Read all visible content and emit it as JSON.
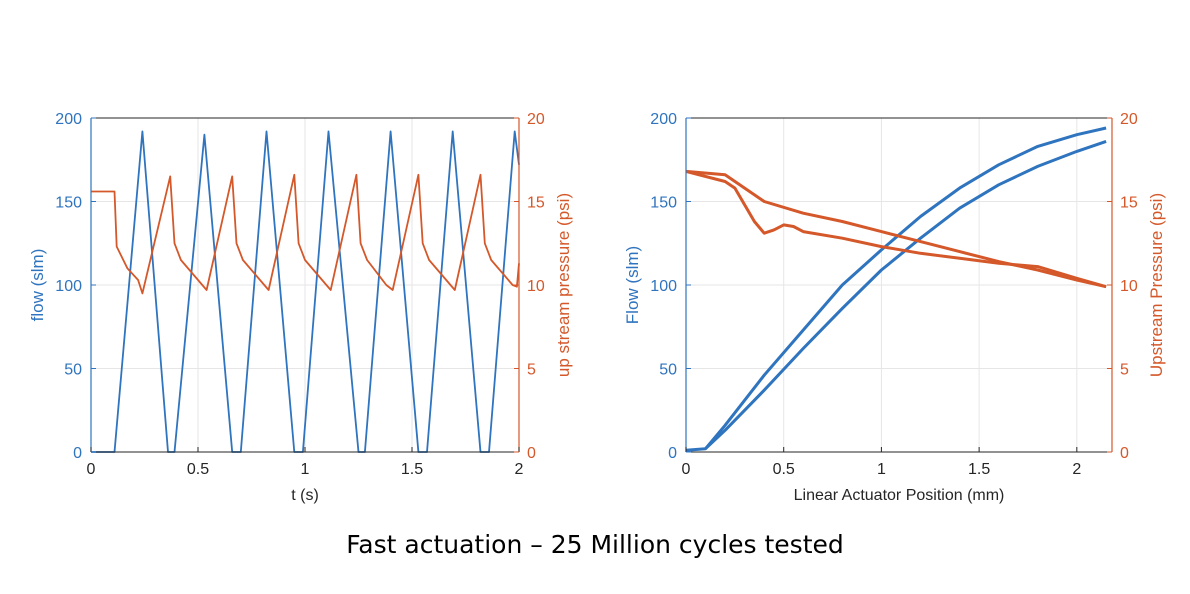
{
  "caption": "Fast actuation – 25 Million cycles tested",
  "colors": {
    "flow": "#2f74be",
    "pressure": "#d4582a",
    "grid": "#e6e6e6",
    "axis": "#262626"
  },
  "chart_data": [
    {
      "type": "line",
      "xlabel": "t (s)",
      "ylabel_left": "flow (slm)",
      "ylabel_right": "up stream pressure (psi)",
      "xlim": [
        0,
        2
      ],
      "ylim_left": [
        0,
        200
      ],
      "ylim_right": [
        0,
        20
      ],
      "xticks": [
        "0",
        "0.5",
        "1",
        "1.5",
        "2"
      ],
      "yticks_left": [
        "0",
        "50",
        "100",
        "150",
        "200"
      ],
      "yticks_right": [
        "0",
        "5",
        "10",
        "15",
        "20"
      ],
      "grid": true,
      "series": [
        {
          "axis": "left",
          "color": "#2f74be",
          "x": [
            0,
            0.11,
            0.24,
            0.36,
            0.375,
            0.39,
            0.53,
            0.66,
            0.685,
            0.7,
            0.82,
            0.95,
            0.97,
            0.99,
            1.11,
            1.25,
            1.265,
            1.28,
            1.4,
            1.53,
            1.55,
            1.57,
            1.69,
            1.82,
            1.84,
            1.86,
            1.98,
            2.0
          ],
          "y": [
            0,
            0,
            192,
            0,
            0,
            0,
            190,
            0,
            0,
            0,
            192,
            0,
            0,
            0,
            192,
            0,
            0,
            0,
            192,
            0,
            0,
            0,
            192,
            0,
            0,
            0,
            192,
            172
          ]
        },
        {
          "axis": "right",
          "color": "#d4582a",
          "x": [
            0,
            0.11,
            0.12,
            0.17,
            0.22,
            0.24,
            0.37,
            0.39,
            0.42,
            0.52,
            0.54,
            0.66,
            0.68,
            0.71,
            0.81,
            0.83,
            0.95,
            0.97,
            1.0,
            1.1,
            1.12,
            1.24,
            1.26,
            1.29,
            1.38,
            1.41,
            1.53,
            1.55,
            1.58,
            1.68,
            1.7,
            1.82,
            1.84,
            1.87,
            1.97,
            1.99,
            2.0
          ],
          "y": [
            15.6,
            15.6,
            12.3,
            11.0,
            10.3,
            9.5,
            16.5,
            12.5,
            11.5,
            10.0,
            9.7,
            16.5,
            12.5,
            11.5,
            10.0,
            9.7,
            16.6,
            12.5,
            11.5,
            10.0,
            9.7,
            16.6,
            12.5,
            11.5,
            10.0,
            9.7,
            16.6,
            12.5,
            11.5,
            10.0,
            9.7,
            16.6,
            12.5,
            11.5,
            10.0,
            9.9,
            11.3
          ]
        }
      ]
    },
    {
      "type": "line",
      "xlabel": "Linear Actuator Position (mm)",
      "ylabel_left": "Flow (slm)",
      "ylabel_right": "Upstream Pressure (psi)",
      "xlim": [
        0,
        2.18
      ],
      "ylim_left": [
        0,
        200
      ],
      "ylim_right": [
        0,
        20
      ],
      "xticks": [
        "0",
        "0.5",
        "1",
        "1.5",
        "2"
      ],
      "yticks_left": [
        "0",
        "50",
        "100",
        "150",
        "200"
      ],
      "yticks_right": [
        "0",
        "5",
        "10",
        "15",
        "20"
      ],
      "grid": true,
      "series": [
        {
          "axis": "left",
          "color": "#2f74be",
          "x": [
            0,
            0.1,
            0.2,
            0.4,
            0.6,
            0.8,
            1.0,
            1.2,
            1.4,
            1.6,
            1.8,
            2.0,
            2.15
          ],
          "y": [
            1,
            2,
            16,
            46,
            73,
            100,
            121,
            141,
            158,
            172,
            183,
            190,
            194
          ]
        },
        {
          "axis": "left",
          "color": "#2f74be",
          "x": [
            0.1,
            0.2,
            0.4,
            0.6,
            0.8,
            1.0,
            1.2,
            1.4,
            1.6,
            1.8,
            2.0,
            2.15
          ],
          "y": [
            2,
            13,
            37,
            62,
            86,
            109,
            128,
            146,
            160,
            171,
            180,
            186
          ]
        },
        {
          "axis": "right",
          "color": "#d4582a",
          "x": [
            0,
            0.2,
            0.25,
            0.3,
            0.35,
            0.4,
            0.45,
            0.5,
            0.55,
            0.6,
            0.8,
            1.0,
            1.2,
            1.4,
            1.6,
            1.8,
            2.0,
            2.15
          ],
          "y": [
            16.8,
            16.2,
            15.8,
            14.8,
            13.8,
            13.1,
            13.3,
            13.6,
            13.5,
            13.2,
            12.8,
            12.3,
            11.9,
            11.6,
            11.3,
            11.1,
            10.4,
            9.9
          ]
        },
        {
          "axis": "right",
          "color": "#d4582a",
          "x": [
            0,
            0.2,
            0.4,
            0.6,
            0.8,
            1.0,
            1.2,
            1.4,
            1.6,
            1.8,
            2.0,
            2.15
          ],
          "y": [
            16.8,
            16.6,
            15.0,
            14.3,
            13.8,
            13.2,
            12.6,
            12.0,
            11.4,
            10.9,
            10.3,
            9.9
          ]
        }
      ]
    }
  ]
}
